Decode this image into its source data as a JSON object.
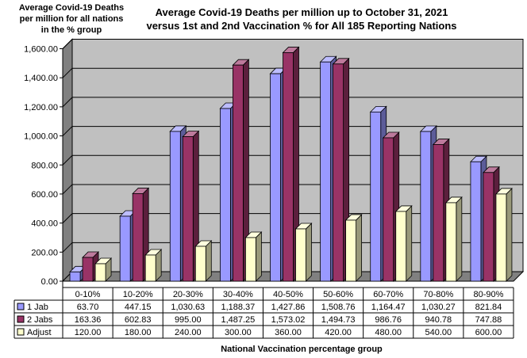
{
  "chart_data": {
    "type": "bar",
    "title_lines": [
      "Average Covid-19 Deaths per million up to October 31, 2021",
      "versus 1st and 2nd Vaccination % for All 185 Reporting Nations"
    ],
    "ylabel_lines": [
      "Average Covid-19 Deaths",
      "per million for all nations",
      "in the % group"
    ],
    "xlabel": "National Vaccination percentage group",
    "categories": [
      "0-10%",
      "10-20%",
      "20-30%",
      "30-40%",
      "40-50%",
      "50-60%",
      "60-70%",
      "70-80%",
      "80-90%"
    ],
    "ylim": [
      0,
      1600
    ],
    "yticks": [
      0,
      200,
      400,
      600,
      800,
      1000,
      1200,
      1400,
      1600
    ],
    "ytick_labels": [
      "0.00",
      "200.00",
      "400.00",
      "600.00",
      "800.00",
      "1,000.00",
      "1,200.00",
      "1,400.00",
      "1,600.00"
    ],
    "grid": true,
    "series": [
      {
        "name": "1 Jab",
        "color": "#9999ff",
        "values": [
          63.7,
          447.15,
          1030.63,
          1188.37,
          1427.86,
          1508.76,
          1164.47,
          1030.27,
          821.84
        ],
        "labels": [
          "63.70",
          "447.15",
          "1,030.63",
          "1,188.37",
          "1,427.86",
          "1,508.76",
          "1,164.47",
          "1,030.27",
          "821.84"
        ]
      },
      {
        "name": "2 Jabs",
        "color": "#993366",
        "values": [
          163.36,
          602.83,
          995.0,
          1487.25,
          1573.02,
          1494.73,
          986.76,
          940.78,
          747.88
        ],
        "labels": [
          "163.36",
          "602.83",
          "995.00",
          "1,487.25",
          "1,573.02",
          "1,494.73",
          "986.76",
          "940.78",
          "747.88"
        ]
      },
      {
        "name": "Adjust",
        "color": "#ffffcc",
        "values": [
          120.0,
          180.0,
          240.0,
          300.0,
          360.0,
          420.0,
          480.0,
          540.0,
          600.0
        ],
        "labels": [
          "120.00",
          "180.00",
          "240.00",
          "300.00",
          "360.00",
          "420.00",
          "480.00",
          "540.00",
          "600.00"
        ]
      }
    ],
    "wall_color": "#c0c0c0",
    "floor_color": "#808080"
  }
}
